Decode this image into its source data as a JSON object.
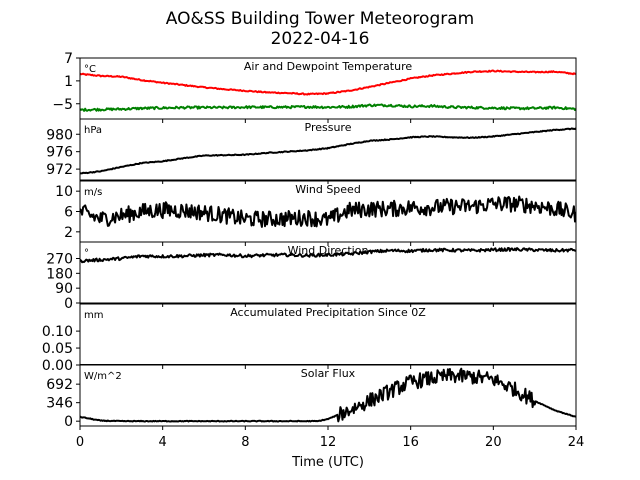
{
  "figure": {
    "title": "AO&SS Building Tower Meteorogram",
    "subtitle": "2022-04-16",
    "xlabel": "Time (UTC)",
    "xlim": [
      0,
      24
    ],
    "xticks": [
      0,
      4,
      8,
      12,
      16,
      20,
      24
    ]
  },
  "chart_data": [
    {
      "type": "line",
      "title": "Air and Dewpoint Temperature",
      "ylabel": "°C",
      "ylim": [
        -9,
        7
      ],
      "yticks": [
        7,
        1,
        -5
      ],
      "ytick_labels": [
        "7",
        "1",
        "−5"
      ],
      "x": [
        0,
        1,
        2,
        3,
        4,
        5,
        6,
        7,
        8,
        9,
        10,
        11,
        12,
        13,
        14,
        15,
        16,
        17,
        18,
        19,
        20,
        21,
        22,
        23,
        24
      ],
      "series": [
        {
          "name": "Air Temperature",
          "color": "#ff0000",
          "values": [
            2.8,
            2.3,
            2.1,
            1.2,
            0.5,
            -0.1,
            -0.7,
            -1.2,
            -1.6,
            -2.0,
            -2.2,
            -2.5,
            -2.3,
            -1.6,
            -0.6,
            0.5,
            1.6,
            2.4,
            2.9,
            3.4,
            3.6,
            3.4,
            3.3,
            3.4,
            2.8
          ],
          "noise": 0.15
        },
        {
          "name": "Dewpoint Temperature",
          "color": "#008000",
          "values": [
            -6.6,
            -6.5,
            -6.4,
            -6.2,
            -6.1,
            -6.0,
            -6.0,
            -6.0,
            -5.9,
            -5.9,
            -5.9,
            -5.8,
            -5.9,
            -5.8,
            -5.4,
            -5.4,
            -5.7,
            -5.6,
            -5.9,
            -6.0,
            -6.1,
            -6.2,
            -6.2,
            -6.0,
            -6.4
          ],
          "noise": 0.3
        }
      ]
    },
    {
      "type": "line",
      "title": "Pressure",
      "ylabel": "hPa",
      "ylim": [
        969.5,
        983.5
      ],
      "yticks": [
        980,
        976,
        972
      ],
      "ytick_labels": [
        "980",
        "976",
        "972"
      ],
      "x": [
        0,
        1,
        2,
        3,
        4,
        5,
        6,
        7,
        8,
        9,
        10,
        11,
        12,
        13,
        14,
        15,
        16,
        17,
        18,
        19,
        20,
        21,
        22,
        23,
        24
      ],
      "series": [
        {
          "name": "Pressure",
          "color": "#000000",
          "values": [
            971.0,
            971.5,
            972.5,
            973.4,
            973.8,
            974.5,
            975.1,
            975.2,
            975.3,
            975.7,
            976.0,
            976.3,
            976.8,
            977.7,
            978.5,
            978.8,
            979.3,
            979.5,
            979.3,
            979.2,
            979.5,
            980.0,
            980.5,
            981.0,
            981.3
          ],
          "noise": 0.1
        }
      ]
    },
    {
      "type": "line",
      "title": "Wind Speed",
      "ylabel": "m/s",
      "ylim": [
        0,
        12
      ],
      "yticks": [
        10,
        6,
        2
      ],
      "ytick_labels": [
        "10",
        "6",
        "2"
      ],
      "x": [
        0,
        1,
        2,
        3,
        4,
        5,
        6,
        7,
        8,
        9,
        10,
        11,
        12,
        13,
        14,
        15,
        16,
        17,
        18,
        19,
        20,
        21,
        22,
        23,
        24
      ],
      "series": [
        {
          "name": "Wind Speed",
          "color": "#000000",
          "values": [
            6.0,
            4.5,
            5.2,
            6.0,
            6.3,
            6.2,
            5.8,
            5.2,
            4.5,
            4.5,
            4.6,
            4.8,
            4.3,
            6.2,
            6.5,
            6.5,
            6.8,
            6.8,
            7.0,
            7.0,
            7.5,
            7.5,
            7.2,
            6.5,
            5.5
          ],
          "noise": 1.6
        }
      ]
    },
    {
      "type": "line",
      "title": "Wind Direction",
      "ylabel": "°",
      "ylim": [
        0,
        370
      ],
      "yticks": [
        270,
        180,
        90,
        0
      ],
      "ytick_labels": [
        "270",
        "180",
        "90",
        "0"
      ],
      "x": [
        0,
        1,
        2,
        3,
        4,
        5,
        6,
        7,
        8,
        9,
        10,
        11,
        12,
        13,
        14,
        15,
        16,
        17,
        18,
        19,
        20,
        21,
        22,
        23,
        24
      ],
      "series": [
        {
          "name": "Wind Direction",
          "color": "#000000",
          "values": [
            255,
            262,
            270,
            285,
            283,
            285,
            290,
            292,
            285,
            290,
            292,
            288,
            292,
            297,
            310,
            318,
            316,
            322,
            320,
            318,
            323,
            325,
            322,
            318,
            322
          ],
          "noise": 9
        }
      ]
    },
    {
      "type": "line",
      "title": "Accumulated Precipitation Since 0Z",
      "ylabel": "mm",
      "ylim": [
        0,
        0.18
      ],
      "yticks": [
        0.1,
        0.05,
        0.0
      ],
      "ytick_labels": [
        "0.10",
        "0.05",
        "0.00"
      ],
      "x": [
        0,
        24
      ],
      "series": [
        {
          "name": "Accumulated Precipitation",
          "color": "#000000",
          "values": [
            0,
            0
          ],
          "noise": 0
        }
      ]
    },
    {
      "type": "line",
      "title": "Solar Flux",
      "ylabel": "W/m^2",
      "ylim": [
        -90,
        1050
      ],
      "yticks": [
        692,
        346,
        0
      ],
      "ytick_labels": [
        "692",
        "346",
        "0"
      ],
      "x": [
        0,
        1,
        2,
        3,
        4,
        5,
        6,
        7,
        8,
        9,
        10,
        11,
        11.5,
        12,
        13,
        14,
        15,
        16,
        17,
        18,
        19,
        20,
        21,
        22,
        23,
        24
      ],
      "series": [
        {
          "name": "Solar Flux",
          "color": "#000000",
          "values": [
            80,
            10,
            0,
            0,
            0,
            0,
            0,
            0,
            0,
            0,
            0,
            0,
            0,
            40,
            200,
            380,
            560,
            730,
            800,
            850,
            830,
            780,
            600,
            380,
            200,
            80
          ],
          "noise": 140,
          "noise_from": 12.5,
          "noise_to": 22
        }
      ]
    }
  ]
}
